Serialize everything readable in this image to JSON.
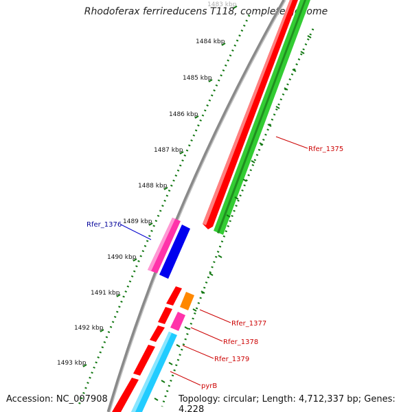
{
  "title": "Rhodoferax ferrireducens T118, complete genome",
  "footer": {
    "accession": "Accession: NC_007908",
    "topology": "Topology: circular; Length: 4,712,337 bp; Genes: 4,228"
  },
  "ticks": [
    {
      "label": "1483 kbp"
    },
    {
      "label": "1484 kbp"
    },
    {
      "label": "1485 kbp"
    },
    {
      "label": "1486 kbp"
    },
    {
      "label": "1487 kbp"
    },
    {
      "label": "1488 kbp"
    },
    {
      "label": "1489 kbp"
    },
    {
      "label": "1490 kbp"
    },
    {
      "label": "1491 kbp"
    },
    {
      "label": "1492 kbp"
    },
    {
      "label": "1493 kbp"
    }
  ],
  "genes": {
    "rfer1375": "Rfer_1375",
    "rfer1376": "Rfer_1376",
    "rfer1377": "Rfer_1377",
    "rfer1378": "Rfer_1378",
    "rfer1379": "Rfer_1379",
    "pyrB": "pyrB"
  },
  "colors": {
    "backbone": "#8a8a8a",
    "forward_cds": "#ff0000",
    "green_cds": "#33cc33",
    "magenta_cds": "#ff33aa",
    "blue_cds": "#0000ee",
    "orange_cds": "#ff8800",
    "cyan_cds": "#22ccff",
    "ruler": "#117711",
    "label_red": "#cc0000",
    "label_blue": "#000099"
  }
}
